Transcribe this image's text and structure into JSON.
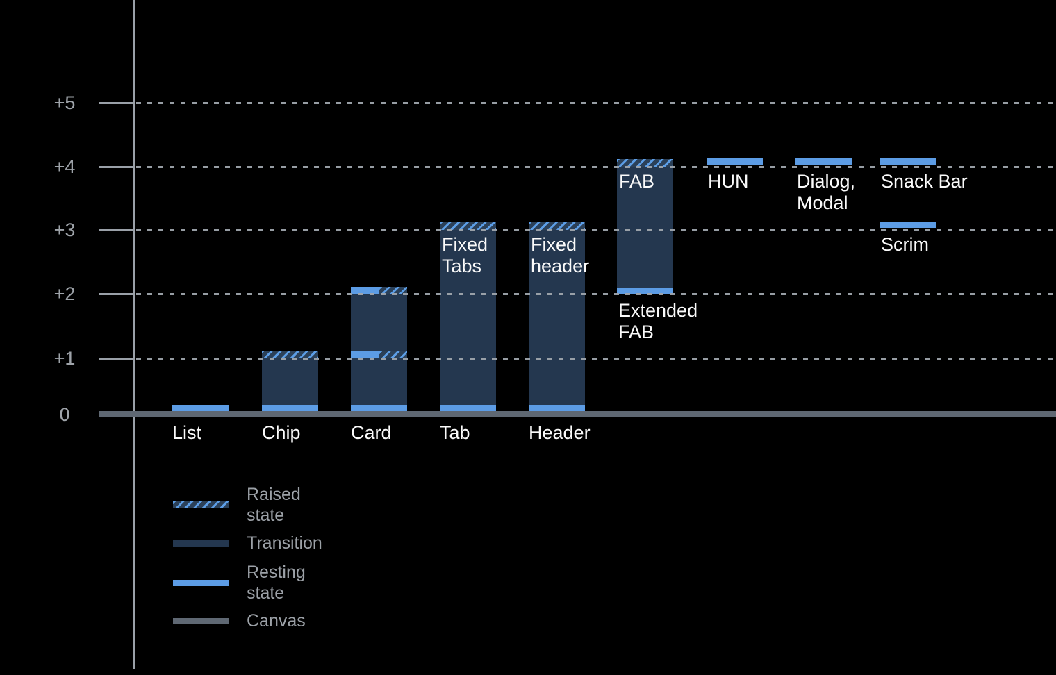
{
  "colors": {
    "background": "#000000",
    "resting_state": "#5C9CE5",
    "transition": "#24374F",
    "raised_hatch_background": "#2B4058",
    "raised_hatch_stripe": "#5C9DE5",
    "canvas_line": "#5F6873",
    "axis": "#9AA0A8",
    "gridline_dots": "#9FA5AD",
    "y_axis_label_text": "#9EA3A9",
    "legend_text": "#9CA1A7",
    "bar_label_text": "#FAFAFA"
  },
  "chart_data": {
    "type": "bar",
    "ylim": [
      0,
      5
    ],
    "grid": {
      "horizontal": "dotted",
      "vertical": false
    },
    "y_ticks": [
      {
        "label": "+5",
        "value": 5
      },
      {
        "label": "+4",
        "value": 4
      },
      {
        "label": "+3",
        "value": 3
      },
      {
        "label": "+2",
        "value": 2
      },
      {
        "label": "+1",
        "value": 1
      },
      {
        "label": "0",
        "value": 0
      }
    ],
    "legend": {
      "position": "bottom-left",
      "items": [
        {
          "label": "Raised state",
          "style": "raised"
        },
        {
          "label": "Transition",
          "style": "transition"
        },
        {
          "label": "Resting state",
          "style": "resting"
        },
        {
          "label": "Canvas",
          "style": "canvas"
        }
      ]
    },
    "components": [
      {
        "id": "list",
        "axis_label": "List",
        "bands": [
          {
            "elevation": 0,
            "style": "resting"
          }
        ]
      },
      {
        "id": "chip",
        "axis_label": "Chip",
        "body": [
          0,
          1
        ],
        "bands": [
          {
            "elevation": 1,
            "style": "raised"
          },
          {
            "elevation": 0,
            "style": "resting"
          }
        ]
      },
      {
        "id": "card",
        "axis_label": "Card",
        "body": [
          0,
          2
        ],
        "bands": [
          {
            "elevation": 2,
            "style": "split"
          },
          {
            "elevation": 1,
            "style": "split"
          },
          {
            "elevation": 0,
            "style": "resting"
          }
        ]
      },
      {
        "id": "tab",
        "axis_label": "Tab",
        "inner_label": "Fixed\nTabs",
        "body": [
          0,
          3
        ],
        "bands": [
          {
            "elevation": 3,
            "style": "raised"
          },
          {
            "elevation": 0,
            "style": "resting"
          }
        ]
      },
      {
        "id": "header",
        "axis_label": "Header",
        "inner_label": "Fixed\nheader",
        "body": [
          0,
          3
        ],
        "bands": [
          {
            "elevation": 3,
            "style": "raised"
          },
          {
            "elevation": 0,
            "style": "resting"
          }
        ]
      },
      {
        "id": "fab",
        "inner_label": "FAB",
        "below_label": "Extended\nFAB",
        "body": [
          2,
          4
        ],
        "bands": [
          {
            "elevation": 4,
            "style": "raised"
          },
          {
            "elevation": 2,
            "style": "resting"
          }
        ]
      },
      {
        "id": "hun",
        "below_label": "HUN",
        "bands": [
          {
            "elevation": 4,
            "style": "resting",
            "float": true
          }
        ]
      },
      {
        "id": "dialog-modal",
        "below_label": "Dialog,\nModal",
        "bands": [
          {
            "elevation": 4,
            "style": "resting",
            "float": true
          }
        ]
      },
      {
        "id": "snack-bar",
        "below_label": "Snack Bar",
        "bands": [
          {
            "elevation": 4,
            "style": "resting",
            "float": true
          }
        ]
      },
      {
        "id": "scrim",
        "below_label": "Scrim",
        "bands": [
          {
            "elevation": 3,
            "style": "resting",
            "float": true
          }
        ]
      }
    ]
  }
}
